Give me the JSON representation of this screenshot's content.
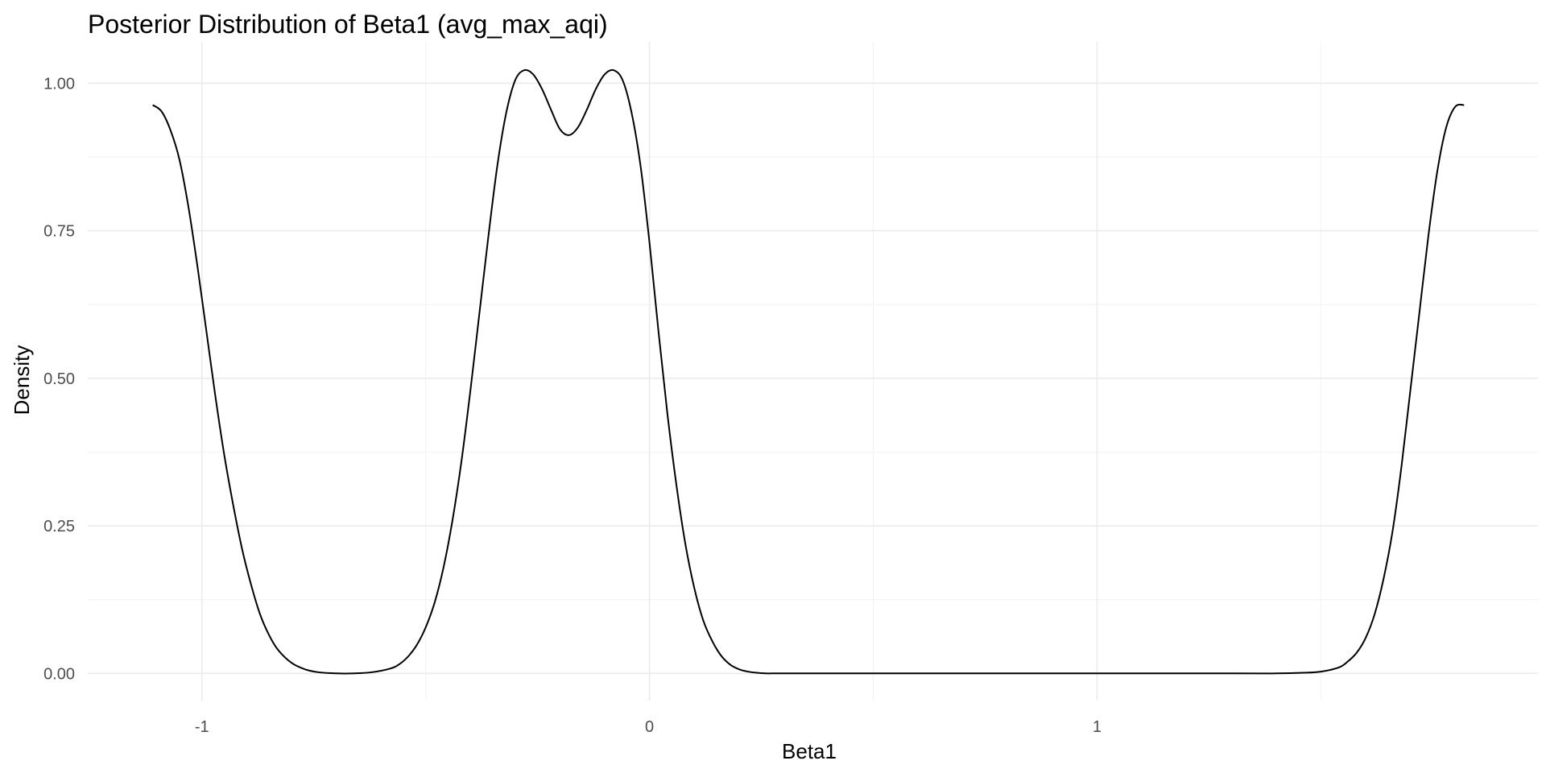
{
  "chart_data": {
    "type": "line",
    "title": "Posterior Distribution of Beta1 (avg_max_aqi)",
    "xlabel": "Beta1",
    "ylabel": "Density",
    "xlim": [
      -1.255,
      1.985
    ],
    "ylim": [
      -0.046,
      1.07
    ],
    "x_ticks": [
      -1,
      0,
      1
    ],
    "x_tick_labels": [
      "-1",
      "0",
      "1"
    ],
    "x_minor_ticks": [
      -0.5,
      0.5,
      1.5
    ],
    "y_ticks": [
      0,
      0.25,
      0.5,
      0.75,
      1.0
    ],
    "y_tick_labels": [
      "0.00",
      "0.25",
      "0.50",
      "0.75",
      "1.00"
    ],
    "y_minor_ticks": [
      0.125,
      0.375,
      0.625,
      0.875
    ],
    "grid": true,
    "legend": "none",
    "line_color": "#000000",
    "series": [
      {
        "x": [
          -1.11,
          -1.09,
          -1.07,
          -1.05,
          -1.03,
          -1.01,
          -0.99,
          -0.97,
          -0.95,
          -0.93,
          -0.91,
          -0.89,
          -0.87,
          -0.85,
          -0.83,
          -0.8,
          -0.77,
          -0.74,
          -0.7,
          -0.66,
          -0.62,
          -0.58,
          -0.56,
          -0.54,
          -0.52,
          -0.5,
          -0.48,
          -0.46,
          -0.44,
          -0.42,
          -0.4,
          -0.38,
          -0.36,
          -0.34,
          -0.32,
          -0.3,
          -0.28,
          -0.26,
          -0.24,
          -0.22,
          -0.2,
          -0.18,
          -0.16,
          -0.14,
          -0.12,
          -0.1,
          -0.08,
          -0.06,
          -0.04,
          -0.02,
          0.0,
          0.02,
          0.04,
          0.06,
          0.08,
          0.1,
          0.12,
          0.14,
          0.16,
          0.18,
          0.2,
          0.22,
          0.24,
          0.26,
          0.28,
          0.3,
          0.33,
          0.36,
          0.4,
          0.46,
          0.55,
          0.7,
          0.9,
          1.1,
          1.3,
          1.4,
          1.46,
          1.5,
          1.54,
          1.56,
          1.58,
          1.6,
          1.62,
          1.64,
          1.66,
          1.68,
          1.7,
          1.72,
          1.74,
          1.76,
          1.78,
          1.8,
          1.82
        ],
        "y": [
          0.963,
          0.952,
          0.92,
          0.87,
          0.79,
          0.69,
          0.58,
          0.47,
          0.37,
          0.285,
          0.21,
          0.15,
          0.1,
          0.065,
          0.04,
          0.018,
          0.007,
          0.002,
          0.0,
          0.0,
          0.002,
          0.008,
          0.015,
          0.028,
          0.048,
          0.078,
          0.12,
          0.18,
          0.26,
          0.36,
          0.48,
          0.61,
          0.74,
          0.86,
          0.95,
          1.005,
          1.022,
          1.015,
          0.99,
          0.955,
          0.922,
          0.912,
          0.925,
          0.955,
          0.99,
          1.015,
          1.022,
          1.005,
          0.95,
          0.86,
          0.73,
          0.58,
          0.44,
          0.32,
          0.22,
          0.145,
          0.09,
          0.055,
          0.03,
          0.015,
          0.007,
          0.003,
          0.001,
          0.0,
          0.0,
          0.0,
          0.0,
          0.0,
          0.0,
          0.0,
          0.0,
          0.0,
          0.0,
          0.0,
          0.0,
          0.0,
          0.001,
          0.003,
          0.01,
          0.02,
          0.035,
          0.06,
          0.1,
          0.16,
          0.24,
          0.35,
          0.48,
          0.61,
          0.74,
          0.85,
          0.925,
          0.96,
          0.963
        ]
      }
    ]
  }
}
